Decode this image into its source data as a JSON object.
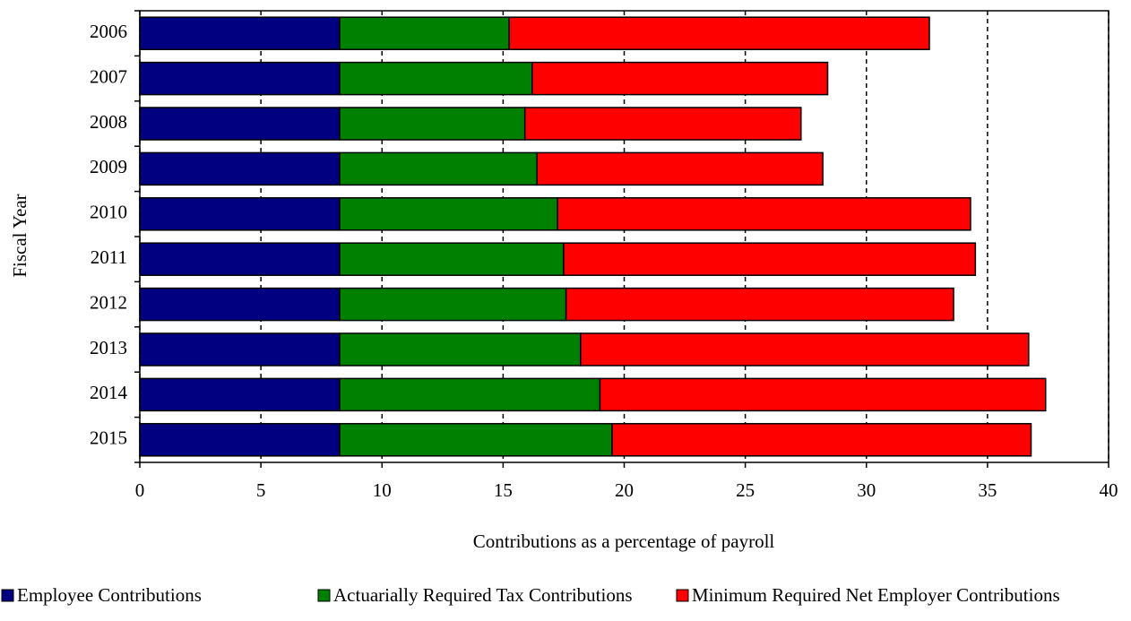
{
  "chart_data": {
    "type": "stacked-barh",
    "x_label": "Contributions as a percentage of payroll",
    "y_label": "Fiscal Year",
    "categories": [
      "2006",
      "2007",
      "2008",
      "2009",
      "2010",
      "2011",
      "2012",
      "2013",
      "2014",
      "2015"
    ],
    "series": [
      {
        "name": "Employee Contributions",
        "color": "#000080",
        "values": [
          8.25,
          8.25,
          8.25,
          8.25,
          8.25,
          8.25,
          8.25,
          8.25,
          8.25,
          8.25
        ]
      },
      {
        "name": "Actuarially Required Tax Contributions",
        "color": "#008000",
        "values": [
          7.0,
          7.95,
          7.65,
          8.15,
          9.0,
          9.25,
          9.35,
          9.95,
          10.75,
          11.25
        ]
      },
      {
        "name": "Minimum Required Net Employer Contributions",
        "color": "#ff0000",
        "values": [
          17.35,
          12.2,
          11.4,
          11.8,
          17.05,
          17.0,
          16.0,
          18.5,
          18.4,
          17.3
        ]
      }
    ],
    "xlim": [
      0,
      40
    ],
    "xticks": [
      0,
      5,
      10,
      15,
      20,
      25,
      30,
      35,
      40
    ],
    "grid": true,
    "legend": "bottom"
  }
}
